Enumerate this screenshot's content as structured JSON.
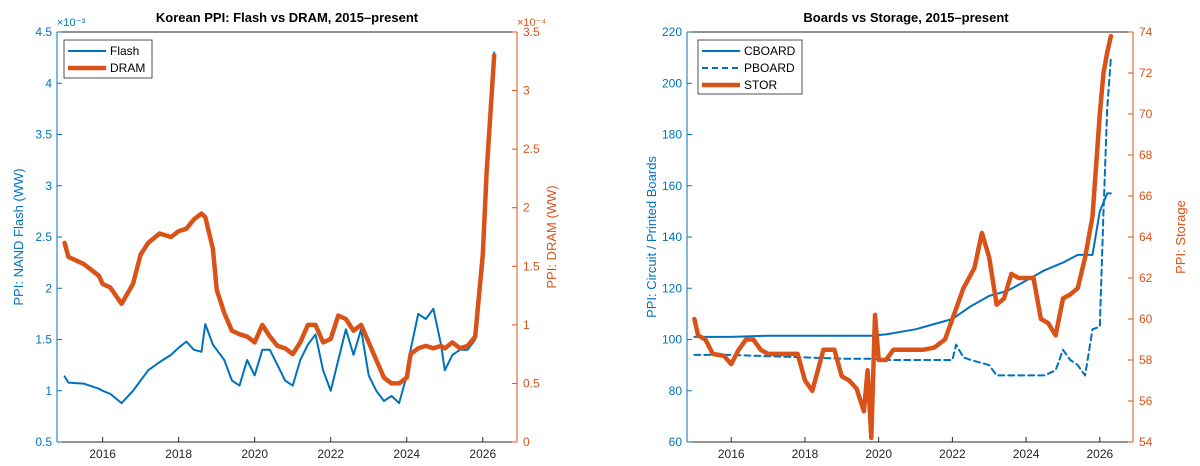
{
  "colors": {
    "blue": "#0072BD",
    "orange": "#D95319",
    "axis": "#262626"
  },
  "chart_data": [
    {
      "type": "line",
      "title": "Korean PPI: Flash vs DRAM, 2015–present",
      "ylabel_left": "PPI: NAND Flash (WW)",
      "ylabel_right": "PPI: DRAM (WW)",
      "xlim": [
        2014.8,
        2026.9
      ],
      "ylim_left": [
        0.5,
        4.5
      ],
      "ylim_right": [
        0,
        3.5
      ],
      "x_ticks": [
        2016,
        2018,
        2020,
        2022,
        2024,
        2026
      ],
      "y_ticks_left": [
        "0.5",
        "1",
        "1.5",
        "2",
        "2.5",
        "3",
        "3.5",
        "4",
        "4.5"
      ],
      "y_ticks_right": [
        "0",
        "0.5",
        "1",
        "1.5",
        "2",
        "2.5",
        "3",
        "3.5"
      ],
      "exponent_left": "×10⁻³",
      "exponent_right": "×10⁻⁴",
      "legend_position": "top-left",
      "grid": false,
      "series": [
        {
          "name": "Flash",
          "axis": "left",
          "color": "#0072BD",
          "style": "solid",
          "width": 2,
          "x": [
            2015.0,
            2015.1,
            2015.5,
            2015.9,
            2016.0,
            2016.2,
            2016.5,
            2016.8,
            2017.0,
            2017.2,
            2017.5,
            2017.8,
            2018.0,
            2018.2,
            2018.4,
            2018.6,
            2018.7,
            2018.9,
            2019.0,
            2019.2,
            2019.4,
            2019.6,
            2019.8,
            2020.0,
            2020.2,
            2020.4,
            2020.6,
            2020.8,
            2021.0,
            2021.2,
            2021.4,
            2021.6,
            2021.8,
            2022.0,
            2022.2,
            2022.4,
            2022.6,
            2022.8,
            2023.0,
            2023.2,
            2023.4,
            2023.6,
            2023.8,
            2024.0,
            2024.1,
            2024.3,
            2024.5,
            2024.7,
            2024.9,
            2025.0,
            2025.2,
            2025.4,
            2025.6,
            2025.8,
            2026.0,
            2026.1,
            2026.2,
            2026.3
          ],
          "y": [
            1.14,
            1.08,
            1.07,
            1.02,
            1.0,
            0.97,
            0.88,
            1.0,
            1.1,
            1.2,
            1.28,
            1.35,
            1.42,
            1.48,
            1.4,
            1.38,
            1.65,
            1.45,
            1.4,
            1.3,
            1.1,
            1.05,
            1.3,
            1.15,
            1.4,
            1.4,
            1.25,
            1.1,
            1.05,
            1.3,
            1.45,
            1.55,
            1.2,
            1.0,
            1.3,
            1.6,
            1.35,
            1.6,
            1.15,
            1.0,
            0.9,
            0.95,
            0.88,
            1.15,
            1.4,
            1.75,
            1.7,
            1.8,
            1.45,
            1.2,
            1.35,
            1.4,
            1.4,
            1.5,
            2.2,
            3.0,
            3.8,
            4.3
          ]
        },
        {
          "name": "DRAM",
          "axis": "right",
          "color": "#D95319",
          "style": "solid",
          "width": 4.5,
          "x": [
            2015.0,
            2015.1,
            2015.5,
            2015.9,
            2016.0,
            2016.2,
            2016.5,
            2016.8,
            2017.0,
            2017.2,
            2017.5,
            2017.8,
            2018.0,
            2018.2,
            2018.4,
            2018.6,
            2018.7,
            2018.9,
            2019.0,
            2019.2,
            2019.4,
            2019.6,
            2019.8,
            2020.0,
            2020.2,
            2020.4,
            2020.6,
            2020.8,
            2021.0,
            2021.2,
            2021.4,
            2021.6,
            2021.8,
            2022.0,
            2022.2,
            2022.4,
            2022.6,
            2022.8,
            2023.0,
            2023.2,
            2023.4,
            2023.6,
            2023.8,
            2024.0,
            2024.1,
            2024.3,
            2024.5,
            2024.7,
            2024.9,
            2025.0,
            2025.2,
            2025.4,
            2025.6,
            2025.8,
            2026.0,
            2026.1,
            2026.2,
            2026.3
          ],
          "y": [
            1.7,
            1.58,
            1.52,
            1.42,
            1.35,
            1.32,
            1.18,
            1.35,
            1.6,
            1.7,
            1.78,
            1.75,
            1.8,
            1.82,
            1.9,
            1.95,
            1.92,
            1.65,
            1.3,
            1.1,
            0.95,
            0.92,
            0.9,
            0.85,
            1.0,
            0.9,
            0.82,
            0.8,
            0.75,
            0.85,
            1.0,
            1.0,
            0.85,
            0.88,
            1.08,
            1.05,
            0.95,
            1.0,
            0.85,
            0.7,
            0.55,
            0.5,
            0.5,
            0.55,
            0.75,
            0.8,
            0.82,
            0.8,
            0.82,
            0.8,
            0.85,
            0.8,
            0.82,
            0.9,
            1.6,
            2.3,
            2.8,
            3.3
          ]
        }
      ]
    },
    {
      "type": "line",
      "title": "Boards vs Storage, 2015–present",
      "ylabel_left": "PPI: Circuit / Printed Boards",
      "ylabel_right": "PPI: Storage",
      "xlim": [
        2014.8,
        2026.9
      ],
      "ylim_left": [
        60,
        220
      ],
      "ylim_right": [
        54,
        74
      ],
      "x_ticks": [
        2016,
        2018,
        2020,
        2022,
        2024,
        2026
      ],
      "y_ticks_left": [
        "60",
        "80",
        "100",
        "120",
        "140",
        "160",
        "180",
        "200",
        "220"
      ],
      "y_ticks_right": [
        "54",
        "56",
        "58",
        "60",
        "62",
        "64",
        "66",
        "68",
        "70",
        "72",
        "74"
      ],
      "legend_position": "top-left",
      "grid": false,
      "series": [
        {
          "name": "CBOARD",
          "axis": "left",
          "color": "#0072BD",
          "style": "solid",
          "width": 2,
          "x": [
            2015.0,
            2016.0,
            2017.0,
            2018.0,
            2019.0,
            2019.8,
            2020.2,
            2020.6,
            2021.0,
            2021.5,
            2022.0,
            2022.5,
            2023.0,
            2023.5,
            2024.0,
            2024.5,
            2025.0,
            2025.4,
            2025.8,
            2026.0,
            2026.2,
            2026.3
          ],
          "y": [
            101,
            101,
            101.5,
            101.5,
            101.5,
            101.5,
            102,
            103,
            104,
            106,
            108,
            113,
            117,
            119,
            123,
            127,
            130,
            133,
            133,
            150,
            157,
            157
          ]
        },
        {
          "name": "PBOARD",
          "axis": "left",
          "color": "#0072BD",
          "style": "dashed",
          "width": 2,
          "x": [
            2015.0,
            2016.0,
            2017.0,
            2018.0,
            2019.0,
            2019.8,
            2020.2,
            2020.6,
            2021.0,
            2021.5,
            2022.0,
            2022.1,
            2022.3,
            2022.5,
            2023.0,
            2023.2,
            2023.5,
            2024.0,
            2024.5,
            2024.8,
            2025.0,
            2025.2,
            2025.4,
            2025.6,
            2025.8,
            2026.0,
            2026.1,
            2026.2,
            2026.3
          ],
          "y": [
            94,
            94,
            93.5,
            93,
            92.5,
            92.5,
            92,
            92,
            92,
            92,
            92,
            98,
            93,
            92,
            90,
            86,
            86,
            86,
            86,
            88,
            96,
            92,
            90,
            86,
            104,
            105,
            150,
            190,
            210
          ]
        },
        {
          "name": "STOR",
          "axis": "right",
          "color": "#D95319",
          "style": "solid",
          "width": 4.5,
          "x": [
            2015.0,
            2015.1,
            2015.3,
            2015.5,
            2015.8,
            2016.0,
            2016.2,
            2016.4,
            2016.6,
            2016.8,
            2017.0,
            2017.2,
            2017.5,
            2017.8,
            2018.0,
            2018.2,
            2018.5,
            2018.8,
            2019.0,
            2019.2,
            2019.4,
            2019.6,
            2019.7,
            2019.8,
            2019.9,
            2020.0,
            2020.2,
            2020.4,
            2020.6,
            2020.8,
            2021.0,
            2021.2,
            2021.5,
            2021.8,
            2022.0,
            2022.3,
            2022.6,
            2022.8,
            2023.0,
            2023.2,
            2023.4,
            2023.6,
            2023.8,
            2024.0,
            2024.2,
            2024.4,
            2024.6,
            2024.8,
            2025.0,
            2025.2,
            2025.4,
            2025.6,
            2025.8,
            2026.0,
            2026.1,
            2026.2,
            2026.3
          ],
          "y": [
            60,
            59.2,
            59.0,
            58.3,
            58.2,
            57.8,
            58.5,
            59.0,
            59.0,
            58.5,
            58.3,
            58.3,
            58.3,
            58.3,
            57.0,
            56.5,
            58.5,
            58.5,
            57.2,
            57.0,
            56.6,
            55.5,
            57.5,
            54.2,
            60.2,
            58.0,
            58.0,
            58.5,
            58.5,
            58.5,
            58.5,
            58.5,
            58.6,
            59.0,
            60.0,
            61.5,
            62.5,
            64.2,
            63.0,
            60.7,
            61.0,
            62.2,
            62.0,
            62.0,
            62.0,
            60.0,
            59.8,
            59.2,
            61.0,
            61.2,
            61.5,
            63.0,
            65.0,
            70.0,
            72.0,
            73.0,
            73.8
          ]
        }
      ]
    }
  ]
}
